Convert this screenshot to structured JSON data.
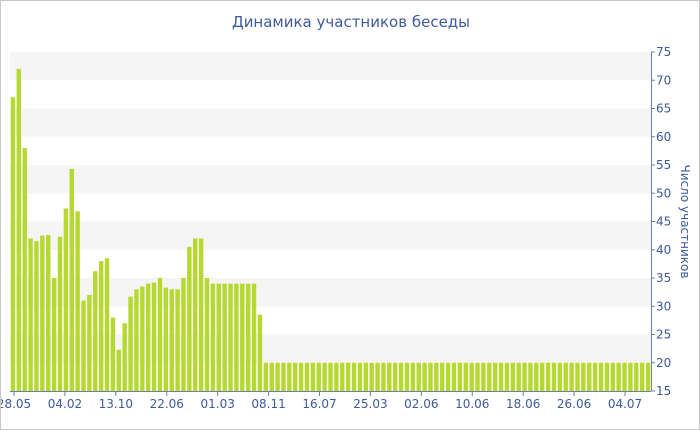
{
  "chart_data": {
    "type": "bar",
    "title": "Динамика участников беседы",
    "ylabel": "Число участников",
    "xlabel": "",
    "ylim": [
      15,
      75
    ],
    "yticks": [
      15,
      20,
      25,
      30,
      35,
      40,
      45,
      50,
      55,
      60,
      65,
      70,
      75
    ],
    "grid": "horizontal bands",
    "y_axis_side": "right",
    "bar_color": "#b5d930",
    "band_color": "#f5f5f5",
    "text_color": "#3d5a9a",
    "x_tick_labels": [
      "28.05",
      "04.02",
      "13.10",
      "22.06",
      "01.03",
      "08.11",
      "16.07",
      "25.03",
      "02.06",
      "10.06",
      "18.06",
      "26.06",
      "04.07"
    ],
    "values": [
      67,
      72,
      58,
      42,
      41.5,
      42.5,
      42.6,
      35,
      42.3,
      47.3,
      54.3,
      46.8,
      31,
      32,
      36.2,
      38,
      38.5,
      28,
      22.3,
      27,
      31.7,
      33,
      33.5,
      34,
      34.2,
      35,
      33.3,
      33,
      33,
      35,
      40.5,
      42,
      42,
      35,
      34,
      34,
      34,
      34,
      34,
      34,
      34,
      34,
      28.5,
      20,
      20,
      20,
      20,
      20,
      20,
      20,
      20,
      20,
      20,
      20,
      20,
      20,
      20,
      20,
      20,
      20,
      20,
      20,
      20,
      20,
      20,
      20,
      20,
      20,
      20,
      20,
      20,
      20,
      20,
      20,
      20,
      20,
      20,
      20,
      20,
      20,
      20,
      20,
      20,
      20,
      20,
      20,
      20,
      20,
      20,
      20,
      20,
      20,
      20,
      20,
      20,
      20,
      20,
      20,
      20,
      20,
      20,
      20,
      20,
      20,
      20,
      20,
      20,
      20,
      20
    ]
  }
}
